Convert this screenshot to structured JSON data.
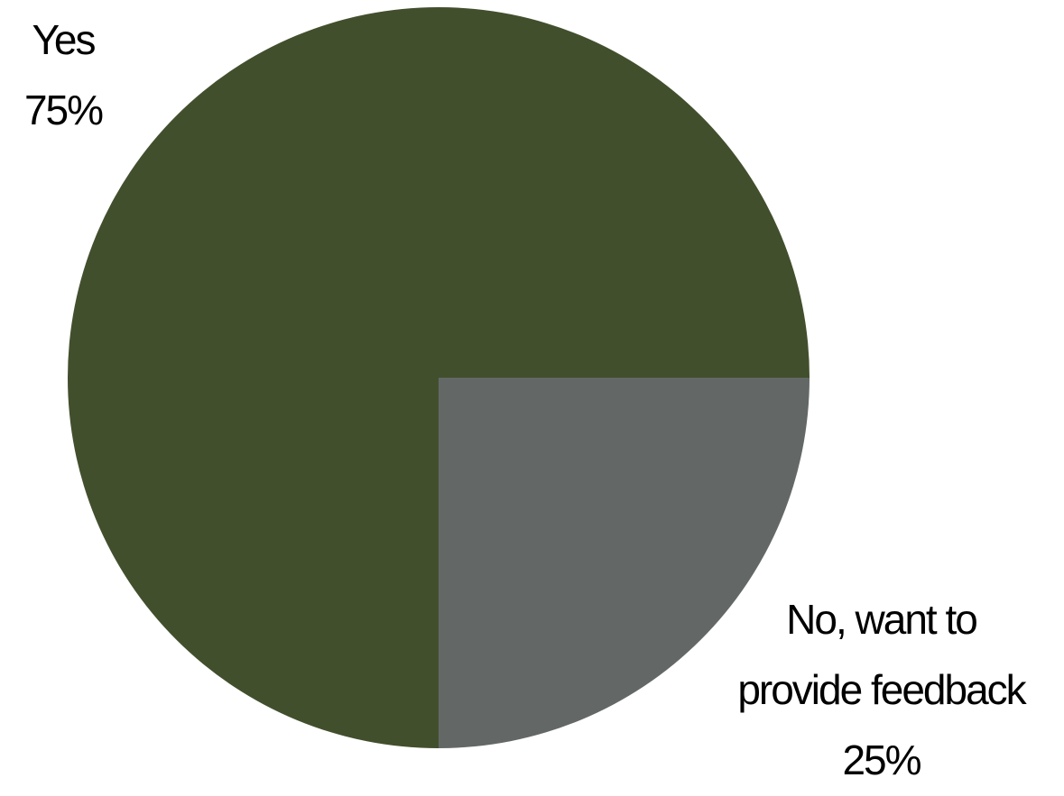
{
  "chart_data": {
    "type": "pie",
    "start_angle_deg": 0,
    "direction": "clockwise",
    "slices": [
      {
        "label": "No, want to provide feedback",
        "value": 25,
        "percent_label": "25%",
        "color": "#636866"
      },
      {
        "label": "Yes",
        "value": 75,
        "percent_label": "75%",
        "color": "#424f2d"
      }
    ],
    "labels": {
      "yes": {
        "name": "Yes",
        "percent": "75%"
      },
      "no": {
        "name_line1": "No, want to",
        "name_line2": "provide feedback",
        "percent": "25%"
      }
    }
  }
}
